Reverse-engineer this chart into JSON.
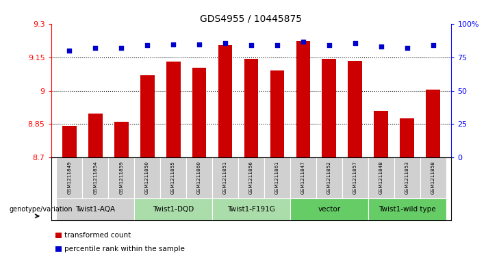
{
  "title": "GDS4955 / 10445875",
  "samples": [
    "GSM1211849",
    "GSM1211854",
    "GSM1211859",
    "GSM1211850",
    "GSM1211855",
    "GSM1211860",
    "GSM1211851",
    "GSM1211856",
    "GSM1211861",
    "GSM1211847",
    "GSM1211852",
    "GSM1211857",
    "GSM1211848",
    "GSM1211853",
    "GSM1211858"
  ],
  "bar_values": [
    8.84,
    8.895,
    8.86,
    9.07,
    9.13,
    9.105,
    9.205,
    9.145,
    9.09,
    9.225,
    9.145,
    9.135,
    8.91,
    8.875,
    9.005
  ],
  "dot_values": [
    80,
    82,
    82,
    84,
    85,
    85,
    86,
    84,
    84,
    87,
    84,
    86,
    83,
    82,
    84
  ],
  "ylim_left": [
    8.7,
    9.3
  ],
  "ylim_right": [
    0,
    100
  ],
  "yticks_left": [
    8.7,
    8.85,
    9.0,
    9.15,
    9.3
  ],
  "ytick_labels_left": [
    "8.7",
    "8.85",
    "9",
    "9.15",
    "9.3"
  ],
  "yticks_right": [
    0,
    25,
    50,
    75,
    100
  ],
  "ytick_labels_right": [
    "0",
    "25",
    "50",
    "75",
    "100%"
  ],
  "bar_color": "#cc0000",
  "dot_color": "#0000cc",
  "groups": [
    {
      "label": "Twist1-AQA",
      "start": 0,
      "end": 3,
      "color": "#d0d0d0"
    },
    {
      "label": "Twist1-DQD",
      "start": 3,
      "end": 6,
      "color": "#aaddaa"
    },
    {
      "label": "Twist1-F191G",
      "start": 6,
      "end": 9,
      "color": "#aaddaa"
    },
    {
      "label": "vector",
      "start": 9,
      "end": 12,
      "color": "#66cc66"
    },
    {
      "label": "Twist1-wild type",
      "start": 12,
      "end": 15,
      "color": "#66cc66"
    }
  ],
  "sample_bg_color": "#d0d0d0",
  "genotype_label": "genotype/variation",
  "legend_transformed": "transformed count",
  "legend_percentile": "percentile rank within the sample",
  "hgrid_values": [
    8.85,
    9.0,
    9.15
  ],
  "bar_base": 8.7,
  "bar_width": 0.55
}
